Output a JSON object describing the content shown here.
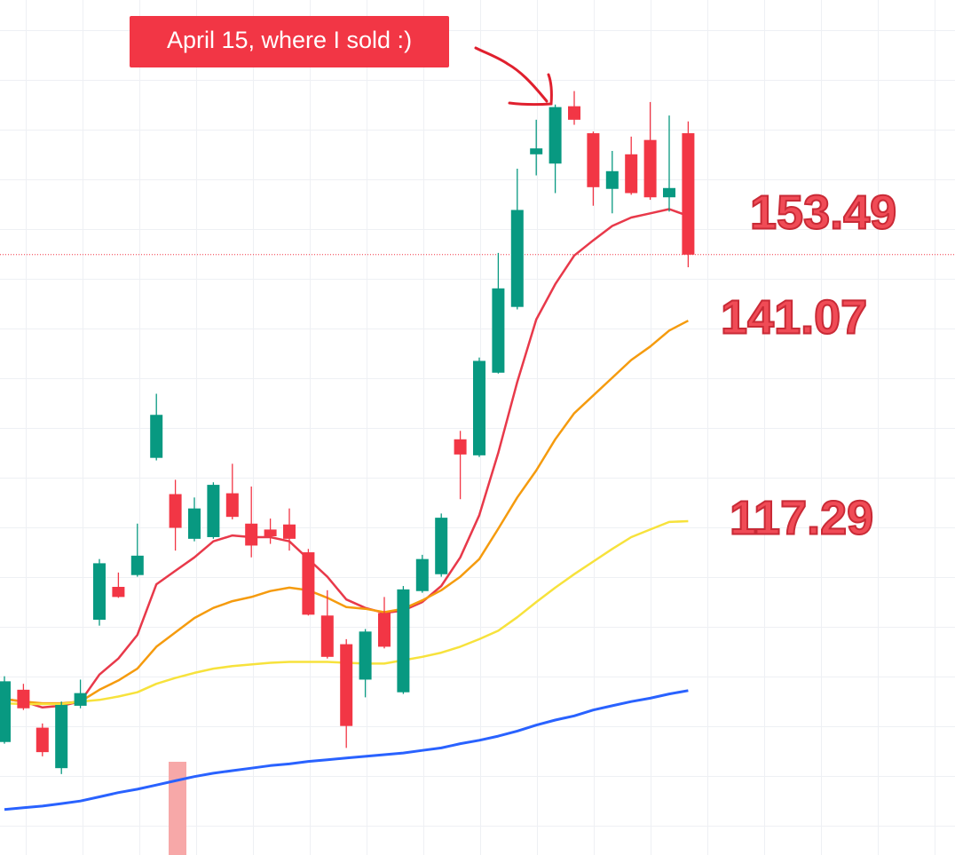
{
  "chart_data": {
    "type": "candlestick",
    "annotation": "April 15, where I sold :)",
    "ylim": [
      77.7,
      179.1
    ],
    "up_color": "#089981",
    "down_color": "#f23645",
    "open": [
      91.1,
      97.3,
      92.8,
      88.0,
      95.4,
      105.6,
      109.5,
      110.9,
      124.8,
      120.5,
      115.2,
      115.4,
      120.6,
      117.0,
      116.3,
      116.9,
      113.6,
      106.1,
      102.7,
      98.5,
      106.4,
      97.0,
      109.0,
      111.0,
      127.0,
      125.1,
      134.9,
      142.7,
      160.8,
      159.7,
      166.5,
      163.3,
      156.7,
      160.8,
      162.5,
      155.7,
      163.3
    ],
    "high": [
      98.9,
      98.0,
      93.3,
      95.9,
      98.5,
      112.8,
      111.2,
      117.0,
      132.4,
      122.2,
      120.1,
      121.9,
      124.1,
      121.4,
      117.6,
      118.8,
      114.0,
      109.1,
      103.3,
      104.5,
      108.3,
      109.6,
      113.3,
      118.2,
      128.0,
      136.7,
      149.1,
      159.1,
      164.9,
      166.7,
      168.3,
      163.5,
      161.2,
      162.9,
      167.0,
      165.4,
      164.7
    ],
    "low": [
      90.9,
      94.9,
      89.4,
      87.3,
      95.1,
      104.9,
      108.2,
      110.7,
      124.5,
      113.8,
      114.9,
      115.2,
      117.5,
      113.0,
      114.6,
      113.8,
      106.1,
      101.0,
      90.4,
      96.4,
      102.2,
      96.8,
      108.8,
      110.7,
      119.9,
      124.9,
      134.8,
      142.4,
      158.3,
      156.2,
      164.3,
      154.7,
      153.8,
      156.0,
      155.4,
      154.0,
      147.4
    ],
    "close": [
      98.3,
      95.1,
      89.9,
      95.5,
      96.9,
      112.3,
      108.3,
      113.2,
      129.9,
      116.5,
      118.8,
      121.6,
      117.8,
      114.4,
      115.5,
      115.2,
      106.2,
      101.2,
      93.0,
      104.2,
      102.4,
      109.2,
      112.8,
      117.7,
      125.2,
      136.3,
      144.9,
      154.2,
      161.5,
      166.4,
      164.9,
      156.9,
      158.8,
      156.2,
      155.7,
      156.8,
      148.9
    ],
    "lines": [
      {
        "color": "#e8394a",
        "label": "153.49",
        "values": [
          96.2,
          95.9,
          95.2,
          95.4,
          95.9,
          99.1,
          101.0,
          103.8,
          109.8,
          111.4,
          113.0,
          114.9,
          115.6,
          115.4,
          115.4,
          114.9,
          112.8,
          110.7,
          108.0,
          107.0,
          106.4,
          106.7,
          107.7,
          109.6,
          113.0,
          118.0,
          125.4,
          133.8,
          141.2,
          145.4,
          148.8,
          150.6,
          152.3,
          153.3,
          153.8,
          154.3,
          153.49
        ]
      },
      {
        "color": "#f59b0e",
        "label": "141.07",
        "values": [
          96.2,
          95.9,
          95.7,
          95.7,
          95.9,
          97.3,
          98.4,
          99.8,
          102.4,
          104.1,
          105.8,
          107.0,
          107.8,
          108.3,
          109.0,
          109.4,
          109.1,
          108.2,
          107.1,
          106.9,
          106.5,
          106.9,
          107.9,
          109.1,
          110.7,
          112.8,
          116.4,
          120.1,
          123.3,
          127.0,
          130.1,
          132.2,
          134.3,
          136.4,
          138.0,
          139.9,
          141.07
        ]
      },
      {
        "color": "#f7e23c",
        "label": "117.29",
        "values": [
          95.7,
          95.6,
          95.6,
          95.6,
          95.9,
          96.1,
          96.5,
          97.0,
          98.0,
          98.7,
          99.3,
          99.8,
          100.1,
          100.3,
          100.5,
          100.6,
          100.6,
          100.6,
          100.5,
          100.4,
          100.4,
          100.8,
          101.2,
          101.7,
          102.4,
          103.3,
          104.3,
          105.9,
          107.7,
          109.4,
          111.0,
          112.5,
          114.0,
          115.4,
          116.3,
          117.2,
          117.29
        ]
      },
      {
        "color": "#2962ff",
        "values": [
          83.1,
          83.3,
          83.5,
          83.8,
          84.1,
          84.6,
          85.1,
          85.5,
          86.0,
          86.5,
          87.0,
          87.4,
          87.7,
          88.0,
          88.3,
          88.5,
          88.8,
          89.0,
          89.2,
          89.4,
          89.6,
          89.8,
          90.1,
          90.4,
          90.9,
          91.3,
          91.8,
          92.4,
          93.1,
          93.7,
          94.2,
          94.9,
          95.4,
          95.9,
          96.3,
          96.8,
          97.2
        ]
      }
    ]
  }
}
